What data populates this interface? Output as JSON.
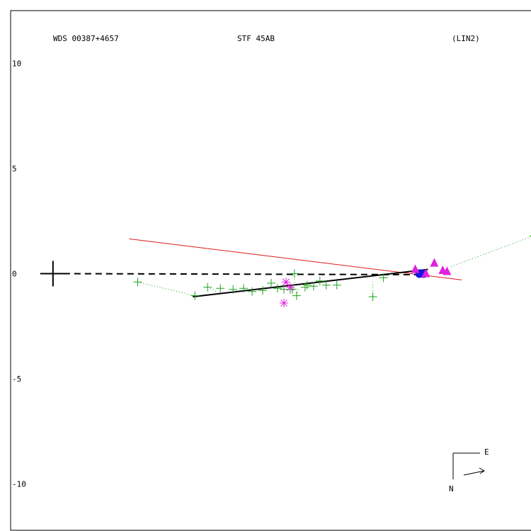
{
  "header": {
    "left": "WDS 00387+4657",
    "center": "STF  45AB",
    "right": "(LIN2)"
  },
  "compass": {
    "east": "E",
    "north": "N"
  },
  "chart_data": {
    "type": "scatter",
    "title": "",
    "xlabel": "",
    "ylabel": "",
    "xlim": [
      -12.0,
      12.9
    ],
    "ylim": [
      -12.2,
      12.5
    ],
    "y_ticks": [
      10,
      5,
      0,
      -5,
      -10
    ],
    "y_tick_labels": [
      "10",
      "5",
      "0",
      "-5",
      "-10"
    ],
    "colors": {
      "green": "#1aa31a",
      "magenta": "#e020e0",
      "blue": "#1515e0",
      "red": "#dd1a1a",
      "black": "#000000"
    },
    "primary": {
      "x": -10,
      "y": 0
    },
    "dashed_line": [
      [
        -10,
        0
      ],
      [
        7.1,
        -0.05
      ]
    ],
    "fit_line": [
      [
        -3.4,
        -1.1
      ],
      [
        7.7,
        0.2
      ]
    ],
    "red_line": [
      [
        -6.4,
        1.65
      ],
      [
        9.3,
        -0.3
      ]
    ],
    "green_plus": [
      [
        -6.0,
        -0.4
      ],
      [
        -3.3,
        -1.05
      ],
      [
        -2.7,
        -0.65
      ],
      [
        -2.1,
        -0.7
      ],
      [
        -1.5,
        -0.75
      ],
      [
        -1.0,
        -0.7
      ],
      [
        -0.6,
        -0.85
      ],
      [
        -0.1,
        -0.8
      ],
      [
        0.3,
        -0.45
      ],
      [
        0.6,
        -0.7
      ],
      [
        0.9,
        -0.75
      ],
      [
        1.3,
        -0.75
      ],
      [
        1.4,
        0.0
      ],
      [
        1.5,
        -1.05
      ],
      [
        1.9,
        -0.65
      ],
      [
        2.3,
        -0.6
      ],
      [
        2.6,
        -0.35
      ],
      [
        2.9,
        -0.55
      ],
      [
        3.4,
        -0.55
      ],
      [
        5.1,
        -1.1
      ],
      [
        5.6,
        -0.2
      ],
      [
        12.7,
        1.8
      ],
      [
        1.2,
        -0.75
      ],
      [
        2.0,
        -0.55
      ]
    ],
    "magenta_star": [
      [
        1.0,
        -0.4
      ],
      [
        0.9,
        -1.4
      ],
      [
        1.2,
        -0.65
      ]
    ],
    "magenta_triangle": [
      [
        7.1,
        0.2
      ],
      [
        7.6,
        0.0
      ],
      [
        8.0,
        0.5
      ],
      [
        8.4,
        0.15
      ],
      [
        8.6,
        0.1
      ]
    ],
    "blue_circle": [
      [
        7.3,
        0.0
      ],
      [
        7.5,
        0.0
      ]
    ],
    "residual_segments": [
      [
        [
          -6.0,
          -0.4
        ],
        [
          -3.3,
          -1.05
        ]
      ],
      [
        [
          -2.7,
          -0.65
        ],
        [
          -2.3,
          -0.85
        ]
      ],
      [
        [
          1.4,
          0.0
        ],
        [
          1.4,
          -0.7
        ]
      ],
      [
        [
          1.5,
          -1.05
        ],
        [
          1.6,
          -0.7
        ]
      ],
      [
        [
          5.1,
          -1.1
        ],
        [
          5.1,
          -0.4
        ]
      ],
      [
        [
          12.7,
          1.8
        ],
        [
          8.7,
          0.3
        ]
      ]
    ]
  }
}
